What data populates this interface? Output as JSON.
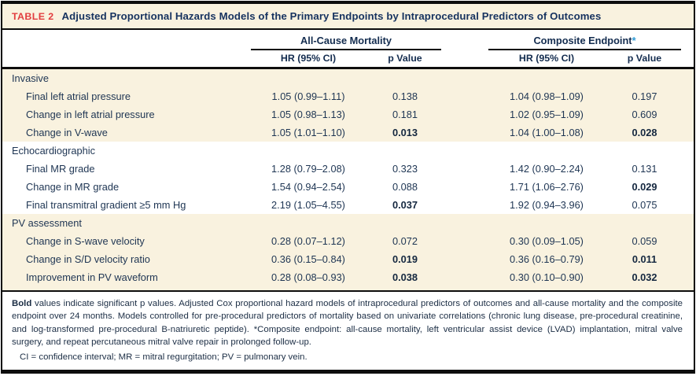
{
  "table": {
    "tag": "TABLE 2",
    "title": "Adjusted Proportional Hazards Models of the Primary Endpoints by Intraprocedural Predictors of Outcomes",
    "column_groups": [
      {
        "label": "All-Cause Mortality",
        "marker": ""
      },
      {
        "label": "Composite Endpoint",
        "marker": "*"
      }
    ],
    "sub_headers": {
      "hr": "HR (95% CI)",
      "p": "p Value"
    },
    "sections": [
      {
        "label": "Invasive",
        "shaded": true,
        "rows": [
          {
            "label": "Final left atrial pressure",
            "acm_hr": "1.05 (0.99–1.11)",
            "acm_p": "0.138",
            "acm_p_bold": false,
            "ce_hr": "1.04 (0.98–1.09)",
            "ce_p": "0.197",
            "ce_p_bold": false
          },
          {
            "label": "Change in left atrial pressure",
            "acm_hr": "1.05 (0.98–1.13)",
            "acm_p": "0.181",
            "acm_p_bold": false,
            "ce_hr": "1.02 (0.95–1.09)",
            "ce_p": "0.609",
            "ce_p_bold": false
          },
          {
            "label": "Change in V-wave",
            "acm_hr": "1.05 (1.01–1.10)",
            "acm_p": "0.013",
            "acm_p_bold": true,
            "ce_hr": "1.04 (1.00–1.08)",
            "ce_p": "0.028",
            "ce_p_bold": true
          }
        ]
      },
      {
        "label": "Echocardiographic",
        "shaded": false,
        "rows": [
          {
            "label": "Final MR grade",
            "acm_hr": "1.28 (0.79–2.08)",
            "acm_p": "0.323",
            "acm_p_bold": false,
            "ce_hr": "1.42 (0.90–2.24)",
            "ce_p": "0.131",
            "ce_p_bold": false
          },
          {
            "label": "Change in MR grade",
            "acm_hr": "1.54 (0.94–2.54)",
            "acm_p": "0.088",
            "acm_p_bold": false,
            "ce_hr": "1.71 (1.06–2.76)",
            "ce_p": "0.029",
            "ce_p_bold": true
          },
          {
            "label": "Final transmitral gradient ≥5 mm Hg",
            "acm_hr": "2.19 (1.05–4.55)",
            "acm_p": "0.037",
            "acm_p_bold": true,
            "ce_hr": "1.92 (0.94–3.96)",
            "ce_p": "0.075",
            "ce_p_bold": false
          }
        ]
      },
      {
        "label": "PV assessment",
        "shaded": true,
        "rows": [
          {
            "label": "Change in S-wave velocity",
            "acm_hr": "0.28 (0.07–1.12)",
            "acm_p": "0.072",
            "acm_p_bold": false,
            "ce_hr": "0.30 (0.09–1.05)",
            "ce_p": "0.059",
            "ce_p_bold": false
          },
          {
            "label": "Change in S/D velocity ratio",
            "acm_hr": "0.36 (0.15–0.84)",
            "acm_p": "0.019",
            "acm_p_bold": true,
            "ce_hr": "0.36 (0.16–0.79)",
            "ce_p": "0.011",
            "ce_p_bold": true
          },
          {
            "label": "Improvement in PV waveform",
            "acm_hr": "0.28 (0.08–0.93)",
            "acm_p": "0.038",
            "acm_p_bold": true,
            "ce_hr": "0.30 (0.10–0.90)",
            "ce_p": "0.032",
            "ce_p_bold": true
          }
        ]
      }
    ],
    "footnote": {
      "lead": "Bold",
      "rest": " values indicate significant p values. Adjusted Cox proportional hazard models of intraprocedural predictors of outcomes and all-cause mortality and the composite endpoint over 24 months. Models controlled for pre-procedural predictors of mortality based on univariate correlations (chronic lung disease, pre-procedural creatinine, and log-transformed pre-procedural B-natriuretic peptide). *Composite endpoint: all-cause mortality, left ventricular assist device (LVAD) implantation, mitral valve surgery, and repeat percutaneous mitral valve repair in prolonged follow-up.",
      "abbreviations": "CI = confidence interval; MR = mitral regurgitation; PV = pulmonary vein."
    },
    "colors": {
      "shaded_row_bg": "#f9f2df",
      "tag_red": "#e23d3f",
      "title_navy": "#16325f",
      "body_navy": "#1e3553",
      "rule_black": "#0d0d0d",
      "marker_blue": "#2e9bd6"
    }
  }
}
